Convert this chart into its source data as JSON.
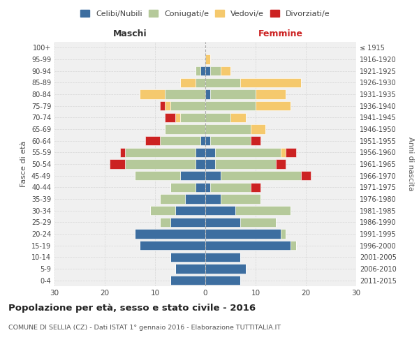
{
  "age_groups": [
    "0-4",
    "5-9",
    "10-14",
    "15-19",
    "20-24",
    "25-29",
    "30-34",
    "35-39",
    "40-44",
    "45-49",
    "50-54",
    "55-59",
    "60-64",
    "65-69",
    "70-74",
    "75-79",
    "80-84",
    "85-89",
    "90-94",
    "95-99",
    "100+"
  ],
  "birth_years": [
    "2011-2015",
    "2006-2010",
    "2001-2005",
    "1996-2000",
    "1991-1995",
    "1986-1990",
    "1981-1985",
    "1976-1980",
    "1971-1975",
    "1966-1970",
    "1961-1965",
    "1956-1960",
    "1951-1955",
    "1946-1950",
    "1941-1945",
    "1936-1940",
    "1931-1935",
    "1926-1930",
    "1921-1925",
    "1916-1920",
    "≤ 1915"
  ],
  "male": {
    "celibi": [
      7,
      6,
      7,
      13,
      14,
      7,
      6,
      4,
      2,
      5,
      2,
      2,
      1,
      0,
      0,
      0,
      0,
      0,
      1,
      0,
      0
    ],
    "coniugati": [
      0,
      0,
      0,
      0,
      0,
      2,
      5,
      5,
      5,
      9,
      14,
      14,
      8,
      8,
      5,
      7,
      8,
      2,
      1,
      0,
      0
    ],
    "vedovi": [
      0,
      0,
      0,
      0,
      0,
      0,
      0,
      0,
      0,
      0,
      0,
      0,
      0,
      0,
      1,
      1,
      5,
      3,
      0,
      0,
      0
    ],
    "divorziati": [
      0,
      0,
      0,
      0,
      0,
      0,
      0,
      0,
      0,
      0,
      3,
      1,
      3,
      0,
      2,
      1,
      0,
      0,
      0,
      0,
      0
    ]
  },
  "female": {
    "nubili": [
      7,
      8,
      7,
      17,
      15,
      7,
      6,
      3,
      1,
      3,
      2,
      2,
      1,
      0,
      0,
      0,
      1,
      0,
      1,
      0,
      0
    ],
    "coniugate": [
      0,
      0,
      0,
      1,
      1,
      7,
      11,
      8,
      8,
      16,
      12,
      13,
      8,
      9,
      5,
      10,
      9,
      7,
      2,
      0,
      0
    ],
    "vedove": [
      0,
      0,
      0,
      0,
      0,
      0,
      0,
      0,
      0,
      0,
      0,
      1,
      0,
      3,
      3,
      7,
      6,
      12,
      2,
      1,
      0
    ],
    "divorziate": [
      0,
      0,
      0,
      0,
      0,
      0,
      0,
      0,
      2,
      2,
      2,
      2,
      2,
      0,
      0,
      0,
      0,
      0,
      0,
      0,
      0
    ]
  },
  "colors": {
    "celibi_nubili": "#3d6ea0",
    "coniugati": "#b5c99a",
    "vedovi": "#f5c96d",
    "divorziati": "#cc2222"
  },
  "xlim": 30,
  "title": "Popolazione per età, sesso e stato civile - 2016",
  "subtitle": "COMUNE DI SELLIA (CZ) - Dati ISTAT 1° gennaio 2016 - Elaborazione TUTTITALIA.IT",
  "ylabel_left": "Fasce di età",
  "ylabel_right": "Anni di nascita",
  "xlabel_left": "Maschi",
  "xlabel_right": "Femmine",
  "bg_color": "#f0f0f0",
  "grid_color": "#cccccc"
}
